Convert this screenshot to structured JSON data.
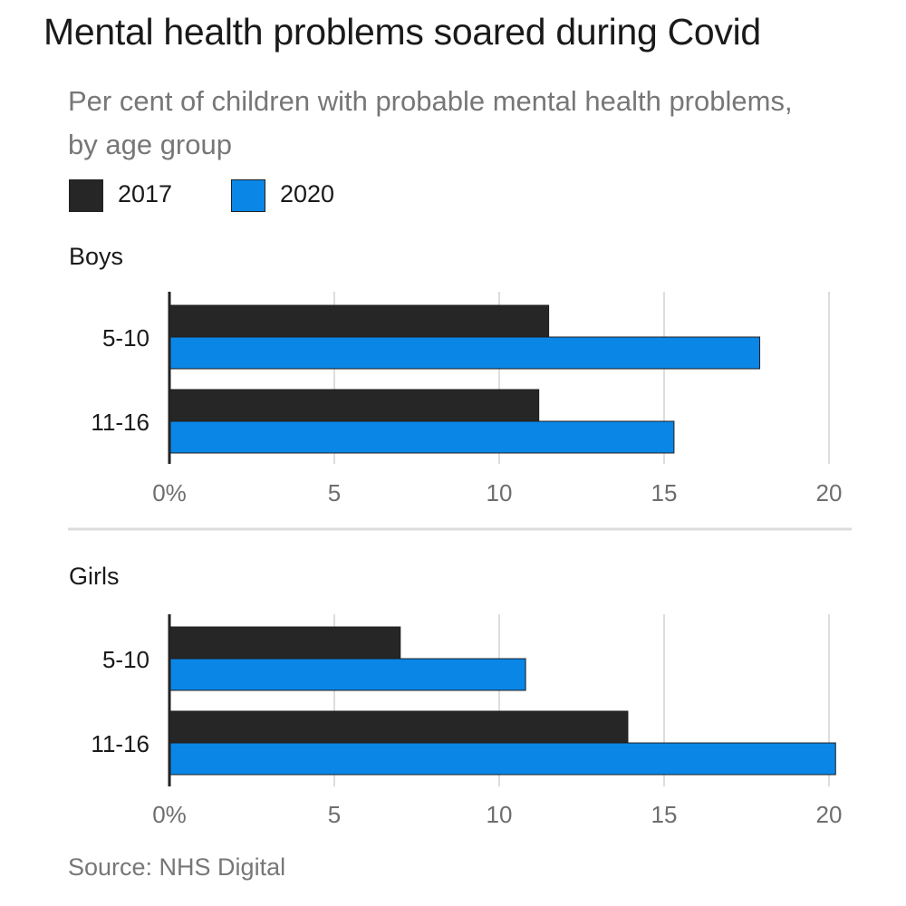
{
  "title": "Mental health problems soared during Covid",
  "subtitle": "Per cent of children with probable mental health problems, by age group",
  "legend": [
    {
      "label": "2017",
      "color": "#262626"
    },
    {
      "label": "2020",
      "color": "#0a86e6"
    }
  ],
  "source": "Source: NHS Digital",
  "chart_data": [
    {
      "type": "bar",
      "orientation": "horizontal",
      "title": "Boys",
      "categories": [
        "5-10",
        "11-16"
      ],
      "series": [
        {
          "name": "2017",
          "values": [
            11.5,
            11.2
          ]
        },
        {
          "name": "2020",
          "values": [
            17.9,
            15.3
          ]
        }
      ],
      "xlim": [
        0,
        20
      ],
      "xticks": [
        0,
        5,
        10,
        15,
        20
      ],
      "xtick_labels": [
        "0%",
        "5",
        "10",
        "15",
        "20"
      ],
      "grid": true
    },
    {
      "type": "bar",
      "orientation": "horizontal",
      "title": "Girls",
      "categories": [
        "5-10",
        "11-16"
      ],
      "series": [
        {
          "name": "2017",
          "values": [
            7.0,
            13.9
          ]
        },
        {
          "name": "2020",
          "values": [
            10.8,
            20.2
          ]
        }
      ],
      "xlim": [
        0,
        20
      ],
      "xticks": [
        0,
        5,
        10,
        15,
        20
      ],
      "xtick_labels": [
        "0%",
        "5",
        "10",
        "15",
        "20"
      ],
      "grid": true
    }
  ]
}
